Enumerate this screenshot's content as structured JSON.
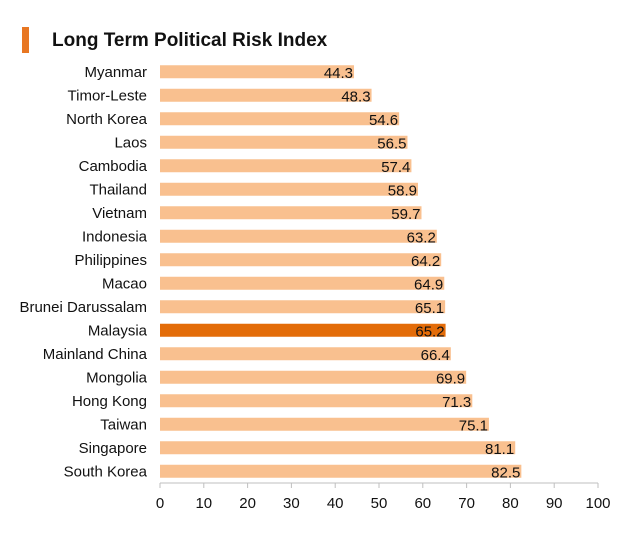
{
  "chart_data": {
    "type": "bar",
    "orientation": "horizontal",
    "title": "Long Term Political Risk Index",
    "xlabel": "",
    "ylabel": "",
    "xlim": [
      0,
      100
    ],
    "ticks": [
      0,
      10,
      20,
      30,
      40,
      50,
      60,
      70,
      80,
      90,
      100
    ],
    "tick_labels": [
      "0",
      "10",
      "20",
      "30",
      "40",
      "50",
      "60",
      "70",
      "80",
      "90",
      "100"
    ],
    "categories": [
      "Myanmar",
      "Timor-Leste",
      "North Korea",
      "Laos",
      "Cambodia",
      "Thailand",
      "Vietnam",
      "Indonesia",
      "Philippines",
      "Macao",
      "Brunei Darussalam",
      "Malaysia",
      "Mainland China",
      "Mongolia",
      "Hong Kong",
      "Taiwan",
      "Singapore",
      "South Korea"
    ],
    "values": [
      44.3,
      48.3,
      54.6,
      56.5,
      57.4,
      58.9,
      59.7,
      63.2,
      64.2,
      64.9,
      65.1,
      65.2,
      66.4,
      69.9,
      71.3,
      75.1,
      81.1,
      82.5
    ],
    "value_labels": [
      "44.3",
      "48.3",
      "54.6",
      "56.5",
      "57.4",
      "58.9",
      "59.7",
      "63.2",
      "64.2",
      "64.9",
      "65.1",
      "65.2",
      "66.4",
      "69.9",
      "71.3",
      "75.1",
      "81.1",
      "82.5"
    ],
    "highlight": "Malaysia",
    "colors": {
      "bar": "#f9c08f",
      "highlight": "#e36c09",
      "accent": "#e87722",
      "axis": "#bfbfbf"
    },
    "grid": false
  }
}
